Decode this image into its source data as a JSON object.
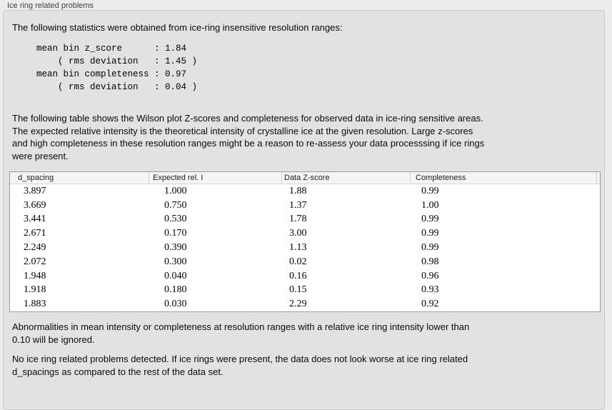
{
  "window": {
    "title": "Ice ring related problems"
  },
  "intro_text": "The following statistics were obtained from ice-ring insensitive resolution ranges:",
  "stats_block": {
    "lines": [
      "mean bin z_score      : 1.84",
      "    ( rms deviation   : 1.45 )",
      "mean bin completeness : 0.97",
      "    ( rms deviation   : 0.04 )"
    ],
    "mean_bin_z_score": "1.84",
    "z_score_rms_deviation": "1.45",
    "mean_bin_completeness": "0.97",
    "completeness_rms_deviation": "0.04"
  },
  "table_description": {
    "lines": [
      "The following table shows the Wilson plot Z-scores and completeness for observed data in ice-ring sensitive areas.",
      "The expected relative intensity is the theoretical intensity of crystalline ice at the given resolution. Large z-scores",
      "and high completeness in these resolution ranges might be a reason to re-assess your data processsing if ice rings",
      "were present."
    ]
  },
  "table": {
    "headers": [
      "d_spacing",
      "Expected rel. I",
      "Data Z-score",
      "Completeness"
    ],
    "rows": [
      [
        "3.897",
        "1.000",
        "1.88",
        "0.99"
      ],
      [
        "3.669",
        "0.750",
        "1.37",
        "1.00"
      ],
      [
        "3.441",
        "0.530",
        "1.78",
        "0.99"
      ],
      [
        "2.671",
        "0.170",
        "3.00",
        "0.99"
      ],
      [
        "2.249",
        "0.390",
        "1.13",
        "0.99"
      ],
      [
        "2.072",
        "0.300",
        "0.02",
        "0.98"
      ],
      [
        "1.948",
        "0.040",
        "0.16",
        "0.96"
      ],
      [
        "1.918",
        "0.180",
        "0.15",
        "0.93"
      ],
      [
        "1.883",
        "0.030",
        "2.29",
        "0.92"
      ]
    ]
  },
  "ignore_note": {
    "lines": [
      "Abnormalities in mean intensity or completeness at resolution ranges with a relative ice ring intensity lower than",
      "0.10 will be ignored."
    ]
  },
  "conclusion": {
    "lines": [
      "No ice ring related problems detected. If ice rings were present, the data does not look worse at ice ring related",
      "d_spacings as compared to the rest of the data set."
    ]
  },
  "colors": {
    "page_bg": "#ececec",
    "groupbox_bg": "#e2e2e2",
    "groupbox_border": "#c9c9c9",
    "table_bg": "#ffffff",
    "table_border": "#9a9a9a",
    "table_header_bg": "#f5f5f5",
    "title_text": "#3f3f3f",
    "body_text": "#0a0a0a"
  }
}
